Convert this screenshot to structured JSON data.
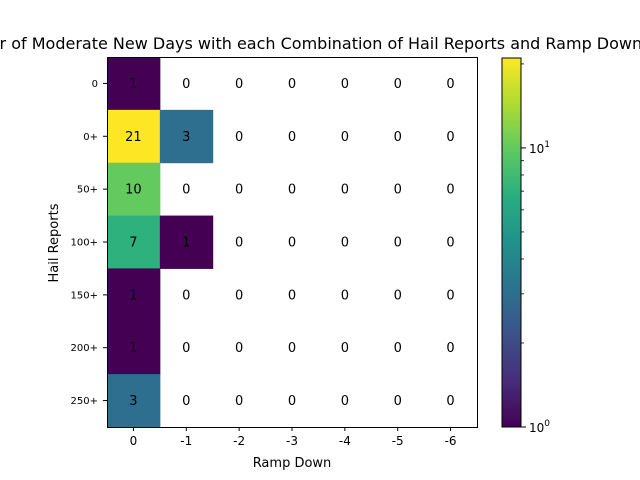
{
  "chart_data": {
    "type": "heatmap",
    "title": "Number of Moderate New Days with each Combination of Hail Reports and Ramp Down",
    "xlabel": "Ramp Down",
    "ylabel": "Hail Reports",
    "x_categories": [
      "0",
      "-1",
      "-2",
      "-3",
      "-4",
      "-5",
      "-6"
    ],
    "y_categories": [
      "0",
      "0+",
      "50+",
      "100+",
      "150+",
      "200+",
      "250+"
    ],
    "values": [
      [
        1,
        0,
        0,
        0,
        0,
        0,
        0
      ],
      [
        21,
        3,
        0,
        0,
        0,
        0,
        0
      ],
      [
        10,
        0,
        0,
        0,
        0,
        0,
        0
      ],
      [
        7,
        1,
        0,
        0,
        0,
        0,
        0
      ],
      [
        1,
        0,
        0,
        0,
        0,
        0,
        0
      ],
      [
        1,
        0,
        0,
        0,
        0,
        0,
        0
      ],
      [
        3,
        0,
        0,
        0,
        0,
        0,
        0
      ]
    ],
    "colormap": "viridis",
    "color_scale": "log",
    "color_range": [
      1,
      21
    ],
    "zero_color": "#ffffff",
    "colorbar": {
      "ticks": [
        {
          "value": 1,
          "label": "10",
          "exp": "0"
        },
        {
          "value": 10,
          "label": "10",
          "exp": "1"
        }
      ]
    },
    "grid": false,
    "legend": "none"
  }
}
